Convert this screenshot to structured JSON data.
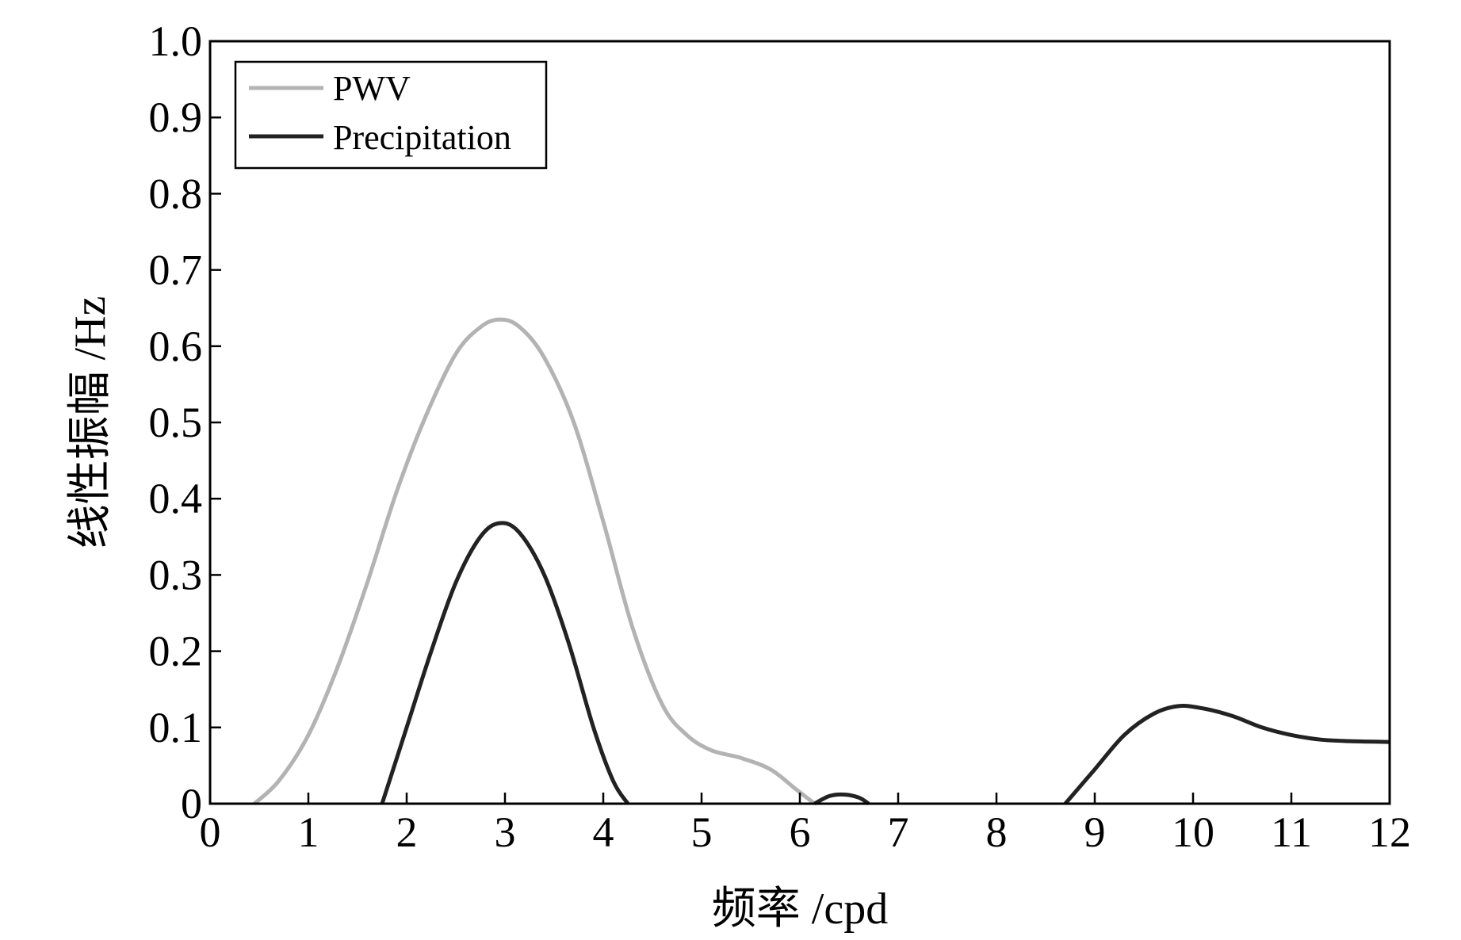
{
  "chart_data": {
    "type": "line",
    "title": "",
    "xlabel": "频率 /cpd",
    "ylabel": "线性振幅 /Hz",
    "xlim": [
      0,
      12
    ],
    "ylim": [
      0,
      1.0
    ],
    "x_ticks": [
      "0",
      "1",
      "2",
      "3",
      "4",
      "5",
      "6",
      "7",
      "8",
      "9",
      "10",
      "11",
      "12"
    ],
    "y_ticks": [
      "0",
      "0.1",
      "0.2",
      "0.3",
      "0.4",
      "0.5",
      "0.6",
      "0.7",
      "0.8",
      "0.9",
      "1.0"
    ],
    "grid": false,
    "legend_position": "top-left",
    "series": [
      {
        "name": "PWV",
        "color": "#b3b3b3",
        "x": [
          0.45,
          0.7,
          1.0,
          1.3,
          1.6,
          1.9,
          2.2,
          2.5,
          2.75,
          2.95,
          3.15,
          3.4,
          3.7,
          4.0,
          4.3,
          4.6,
          4.85,
          5.1,
          5.4,
          5.7,
          5.95,
          6.15
        ],
        "y": [
          0.0,
          0.03,
          0.09,
          0.18,
          0.29,
          0.41,
          0.51,
          0.59,
          0.625,
          0.635,
          0.625,
          0.585,
          0.5,
          0.37,
          0.23,
          0.13,
          0.09,
          0.07,
          0.06,
          0.045,
          0.02,
          0.0
        ]
      },
      {
        "name": "Precipitation",
        "color": "#222222",
        "segments": [
          {
            "x": [
              1.75,
              2.0,
              2.25,
              2.5,
              2.75,
              2.95,
              3.15,
              3.4,
              3.65,
              3.9,
              4.1,
              4.25
            ],
            "y": [
              0.0,
              0.1,
              0.2,
              0.29,
              0.35,
              0.368,
              0.355,
              0.3,
              0.21,
              0.1,
              0.03,
              0.0
            ]
          },
          {
            "x": [
              6.15,
              6.3,
              6.45,
              6.6,
              6.7
            ],
            "y": [
              0.0,
              0.01,
              0.012,
              0.008,
              0.0
            ]
          },
          {
            "x": [
              8.7,
              9.0,
              9.3,
              9.6,
              9.85,
              10.1,
              10.4,
              10.7,
              11.0,
              11.3,
              11.6,
              12.0
            ],
            "y": [
              0.0,
              0.045,
              0.09,
              0.118,
              0.128,
              0.125,
              0.115,
              0.1,
              0.09,
              0.084,
              0.082,
              0.081
            ]
          }
        ]
      }
    ]
  }
}
